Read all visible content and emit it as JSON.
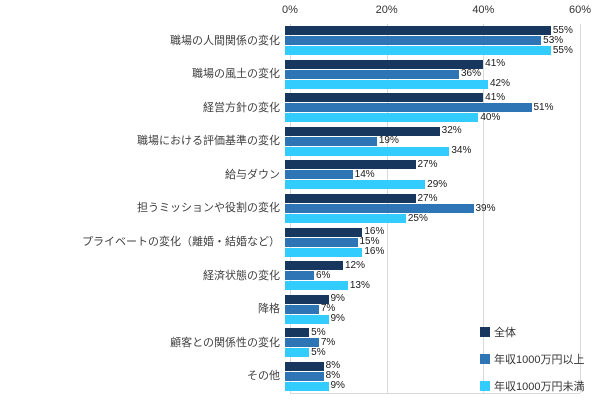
{
  "chart_data": {
    "type": "bar",
    "orientation": "horizontal",
    "title": "",
    "xlabel": "",
    "ylabel": "",
    "xlim": [
      0,
      60
    ],
    "x_ticks": [
      "0%",
      "20%",
      "40%",
      "60%"
    ],
    "grid": true,
    "legend_position": "bottom-right",
    "value_suffix": "%",
    "categories": [
      "職場の人間関係の変化",
      "職場の風土の変化",
      "経営方針の変化",
      "職場における評価基準の変化",
      "給与ダウン",
      "担うミッションや役割の変化",
      "プライベートの変化（離婚・結婚など）",
      "経済状態の変化",
      "降格",
      "顧客との関係性の変化",
      "その他"
    ],
    "series": [
      {
        "name": "全体",
        "color": "#17375E",
        "values": [
          55,
          41,
          41,
          32,
          27,
          27,
          16,
          12,
          9,
          5,
          8
        ]
      },
      {
        "name": "年収1000万円以上",
        "color": "#2E75B6",
        "values": [
          53,
          36,
          51,
          19,
          14,
          39,
          15,
          6,
          7,
          7,
          8
        ]
      },
      {
        "name": "年収1000万円未満",
        "color": "#33CCFF",
        "values": [
          55,
          42,
          40,
          34,
          29,
          25,
          16,
          13,
          9,
          5,
          9
        ]
      }
    ]
  }
}
